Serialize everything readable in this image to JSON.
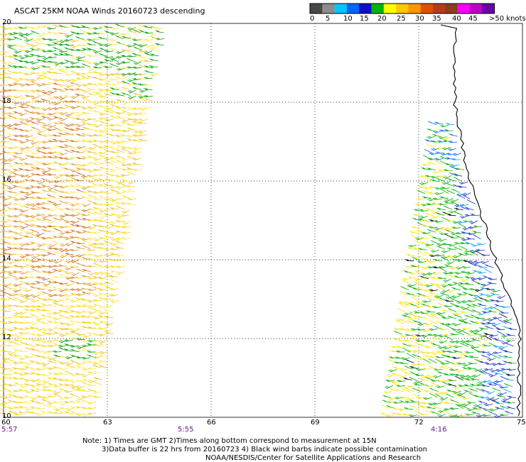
{
  "title": "ASCAT 25KM NOAA Winds 20160723 descending",
  "legend": {
    "colors": [
      "#474747",
      "#8c8c8c",
      "#00c8ff",
      "#0064ff",
      "#1010c8",
      "#00b400",
      "#ffff00",
      "#ffc800",
      "#ff9600",
      "#e05000",
      "#b43c1e",
      "#8c3c1e",
      "#ff00ff",
      "#c000c8",
      "#6a00a8"
    ],
    "labels": [
      "0",
      "5",
      "10",
      "15",
      "20",
      "25",
      "30",
      "35",
      "40",
      "45",
      ">50 knots"
    ]
  },
  "axes": {
    "lat_labels": [
      "20",
      "18",
      "16",
      "14",
      "12",
      "10"
    ],
    "lon_labels": [
      "60",
      "63",
      "66",
      "69",
      "72",
      "75"
    ]
  },
  "times": [
    "5:57",
    "5:55",
    "4:16"
  ],
  "notes": {
    "line1": "Note: 1) Times are GMT 2)Times along bottom correspond to measurement at 15N",
    "line2": "3)Data buffer is 22 hrs from 20160723 4) Black wind barbs indicate possible contamination",
    "line3": "NOAA/NESDIS/Center for Satellite Applications and Research"
  }
}
